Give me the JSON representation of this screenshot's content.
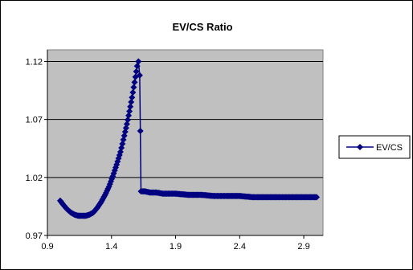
{
  "chart_data": {
    "type": "line",
    "title": "EV/CS Ratio",
    "xlabel": "",
    "ylabel": "",
    "xlim": [
      0.9,
      3.05
    ],
    "ylim": [
      0.97,
      1.13
    ],
    "xticks": [
      0.9,
      1.4,
      1.9,
      2.4,
      2.9
    ],
    "yticks": [
      0.97,
      1.02,
      1.07,
      1.12
    ],
    "xtick_labels": [
      "0.9",
      "1.4",
      "1.9",
      "2.4",
      "2.9"
    ],
    "ytick_labels": [
      "0.97",
      "1.02",
      "1.07",
      "1.12"
    ],
    "grid": "horizontal",
    "legend": "right",
    "plot_background": "#c0c0c0",
    "series": [
      {
        "name": "EV/CS",
        "color": "#000080",
        "marker": "diamond",
        "x": [
          1.0,
          1.02,
          1.05,
          1.08,
          1.11,
          1.14,
          1.17,
          1.2,
          1.23,
          1.26,
          1.29,
          1.32,
          1.35,
          1.38,
          1.41,
          1.44,
          1.47,
          1.5,
          1.52,
          1.54,
          1.56,
          1.58,
          1.6,
          1.61,
          1.62,
          1.625,
          1.63,
          1.64,
          1.66,
          1.7,
          1.75,
          1.8,
          1.9,
          2.0,
          2.1,
          2.2,
          2.3,
          2.4,
          2.5,
          2.6,
          2.7,
          2.8,
          2.9,
          3.0
        ],
        "y": [
          1.0,
          0.997,
          0.993,
          0.99,
          0.988,
          0.987,
          0.987,
          0.987,
          0.988,
          0.99,
          0.994,
          0.999,
          1.005,
          1.012,
          1.021,
          1.031,
          1.042,
          1.056,
          1.066,
          1.077,
          1.089,
          1.102,
          1.116,
          1.12,
          1.108,
          1.06,
          1.008,
          1.008,
          1.008,
          1.007,
          1.007,
          1.006,
          1.006,
          1.005,
          1.005,
          1.004,
          1.004,
          1.004,
          1.003,
          1.003,
          1.003,
          1.003,
          1.003,
          1.003
        ]
      }
    ]
  }
}
